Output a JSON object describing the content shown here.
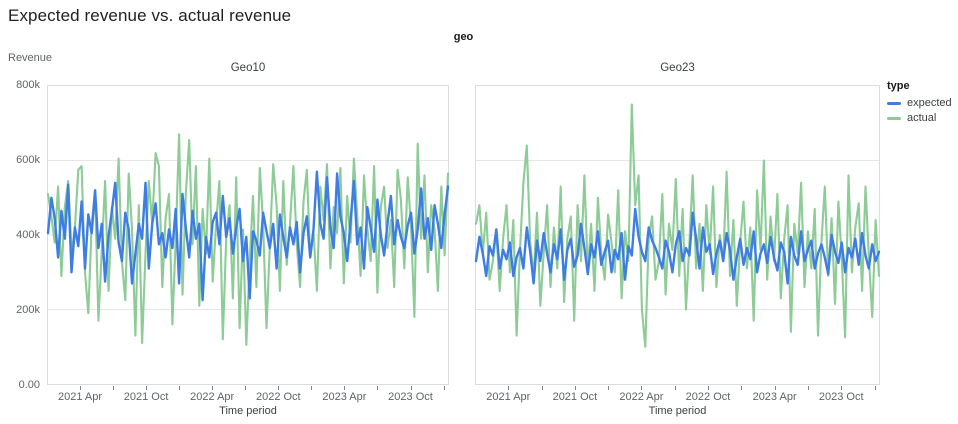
{
  "title": "Expected revenue vs. actual revenue",
  "facet_header": "geo",
  "y_axis_title": "Revenue",
  "y_ticks": [
    "800k",
    "600k",
    "400k",
    "200k",
    "0.00"
  ],
  "legend": {
    "title": "type",
    "items": [
      {
        "label": "expected",
        "color": "#3d7de4"
      },
      {
        "label": "actual",
        "color": "#8dcb97"
      }
    ]
  },
  "colors": {
    "expected": "#3d7de4",
    "actual": "#8dcb97",
    "grid": "#e6e6e6",
    "panel_border": "#dadce0",
    "axis_text": "#5f6368",
    "tick_mark": "#80868b"
  },
  "chart_data": [
    {
      "type": "line",
      "facet": "Geo10",
      "x_axis_title": "Time period",
      "xlabel": "Time period",
      "ylabel": "Revenue",
      "ylim": [
        0,
        800000
      ],
      "values_unit": "thousands",
      "x_span_months": 36.5,
      "x_start": "2021 Jan",
      "x_tick_months": [
        3,
        6,
        9,
        12,
        15,
        18,
        21,
        24,
        27,
        30,
        33,
        36
      ],
      "x_label_months": [
        3,
        9,
        15,
        21,
        27,
        33
      ],
      "x_tick_labels": [
        "2021 Apr",
        "2021 Oct",
        "2022 Apr",
        "2022 Oct",
        "2023 Apr",
        "2023 Oct"
      ],
      "y_gridlines_k": [
        200,
        400,
        600
      ],
      "series": [
        {
          "name": "expected",
          "values_k": [
            405,
            500,
            445,
            340,
            465,
            390,
            535,
            300,
            420,
            370,
            490,
            310,
            455,
            405,
            520,
            365,
            430,
            275,
            395,
            465,
            540,
            380,
            330,
            460,
            415,
            270,
            350,
            430,
            390,
            540,
            310,
            430,
            485,
            375,
            405,
            340,
            415,
            365,
            470,
            270,
            510,
            420,
            340,
            465,
            390,
            430,
            225,
            395,
            340,
            435,
            460,
            375,
            505,
            395,
            445,
            350,
            420,
            470,
            330,
            395,
            230,
            410,
            385,
            345,
            460,
            410,
            365,
            430,
            310,
            455,
            395,
            340,
            420,
            375,
            435,
            300,
            405,
            450,
            340,
            415,
            570,
            430,
            390,
            555,
            420,
            365,
            565,
            450,
            405,
            330,
            435,
            545,
            375,
            420,
            310,
            475,
            420,
            355,
            495,
            400,
            345,
            430,
            505,
            375,
            440,
            395,
            365,
            425,
            460,
            350,
            415,
            525,
            390,
            445,
            360,
            480,
            430,
            365,
            455,
            530
          ]
        },
        {
          "name": "actual",
          "values_k": [
            510,
            450,
            380,
            530,
            290,
            475,
            545,
            350,
            420,
            575,
            585,
            300,
            190,
            430,
            520,
            170,
            360,
            545,
            250,
            475,
            390,
            605,
            330,
            225,
            565,
            415,
            130,
            480,
            110,
            350,
            545,
            430,
            620,
            585,
            260,
            445,
            510,
            160,
            390,
            670,
            240,
            510,
            655,
            375,
            585,
            210,
            470,
            350,
            605,
            275,
            430,
            545,
            120,
            390,
            480,
            230,
            555,
            150,
            415,
            105,
            330,
            505,
            260,
            580,
            430,
            150,
            370,
            590,
            480,
            250,
            545,
            320,
            430,
            585,
            375,
            260,
            490,
            575,
            340,
            410,
            250,
            530,
            440,
            590,
            310,
            475,
            405,
            580,
            270,
            505,
            380,
            605,
            455,
            290,
            560,
            420,
            330,
            585,
            245,
            475,
            530,
            365,
            440,
            260,
            575,
            495,
            310,
            555,
            425,
            180,
            645,
            390,
            560,
            300,
            480,
            415,
            250,
            530,
            345,
            565
          ]
        }
      ]
    },
    {
      "type": "line",
      "facet": "Geo23",
      "x_axis_title": "Time period",
      "xlabel": "Time period",
      "ylabel": "Revenue",
      "ylim": [
        0,
        800000
      ],
      "values_unit": "thousands",
      "x_span_months": 36.5,
      "x_start": "2021 Jan",
      "x_tick_months": [
        3,
        6,
        9,
        12,
        15,
        18,
        21,
        24,
        27,
        30,
        33,
        36
      ],
      "x_label_months": [
        3,
        9,
        15,
        21,
        27,
        33
      ],
      "x_tick_labels": [
        "2021 Apr",
        "2021 Oct",
        "2022 Apr",
        "2022 Oct",
        "2023 Apr",
        "2023 Oct"
      ],
      "y_gridlines_k": [
        200,
        400,
        600
      ],
      "series": [
        {
          "name": "expected",
          "values_k": [
            330,
            395,
            350,
            290,
            370,
            345,
            415,
            310,
            360,
            335,
            380,
            290,
            340,
            365,
            310,
            420,
            355,
            270,
            385,
            330,
            405,
            350,
            300,
            375,
            335,
            415,
            280,
            360,
            390,
            315,
            345,
            430,
            365,
            295,
            375,
            340,
            410,
            320,
            355,
            385,
            300,
            360,
            335,
            405,
            280,
            370,
            345,
            470,
            395,
            355,
            330,
            420,
            385,
            365,
            340,
            310,
            385,
            355,
            300,
            375,
            410,
            330,
            365,
            345,
            460,
            390,
            310,
            420,
            355,
            375,
            295,
            350,
            385,
            330,
            405,
            360,
            280,
            340,
            390,
            320,
            365,
            335,
            410,
            300,
            350,
            375,
            325,
            395,
            340,
            305,
            380,
            355,
            270,
            395,
            345,
            320,
            410,
            330,
            360,
            385,
            310,
            350,
            375,
            340,
            295,
            400,
            355,
            325,
            380,
            300,
            365,
            340,
            390,
            320,
            405,
            345,
            310,
            375,
            330,
            355
          ]
        },
        {
          "name": "actual",
          "values_k": [
            430,
            480,
            350,
            460,
            280,
            330,
            415,
            250,
            390,
            480,
            300,
            440,
            130,
            360,
            540,
            640,
            380,
            290,
            460,
            210,
            350,
            480,
            260,
            420,
            310,
            530,
            220,
            390,
            450,
            170,
            480,
            330,
            560,
            300,
            430,
            250,
            500,
            350,
            280,
            455,
            380,
            300,
            520,
            230,
            410,
            330,
            750,
            480,
            560,
            200,
            100,
            390,
            450,
            280,
            330,
            510,
            240,
            430,
            360,
            550,
            290,
            470,
            200,
            380,
            560,
            310,
            430,
            250,
            480,
            350,
            530,
            260,
            400,
            330,
            570,
            290,
            440,
            210,
            380,
            490,
            310,
            420,
            170,
            520,
            360,
            600,
            280,
            450,
            330,
            510,
            230,
            390,
            480,
            140,
            430,
            350,
            540,
            260,
            410,
            310,
            470,
            130,
            380,
            530,
            290,
            445,
            215,
            490,
            340,
            125,
            560,
            300,
            420,
            485,
            250,
            530,
            345,
            180,
            440,
            290
          ]
        }
      ]
    }
  ],
  "layout_note": ""
}
